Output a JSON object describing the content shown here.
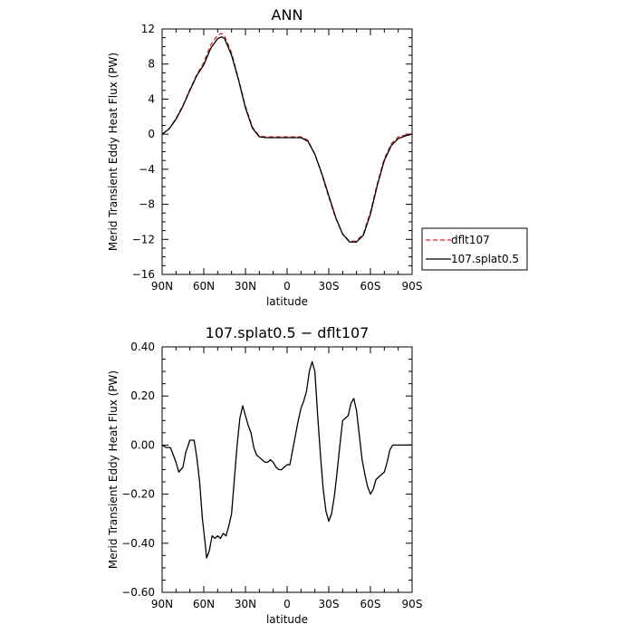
{
  "chart_data": [
    {
      "type": "line",
      "title": "ANN",
      "xlabel": "latitude",
      "ylabel": "Merid Transient Eddy Heat Flux (PW)",
      "xlim": [
        -90,
        90
      ],
      "ylim": [
        -16,
        12
      ],
      "x_ticks": [
        -90,
        -60,
        -30,
        0,
        30,
        60,
        90
      ],
      "x_tick_labels": [
        "90N",
        "60N",
        "30N",
        "0",
        "30S",
        "60S",
        "90S"
      ],
      "y_ticks": [
        12,
        8,
        4,
        0,
        -4,
        -8,
        -12,
        -16
      ],
      "y_tick_labels": [
        "12",
        "8",
        "4",
        "0",
        "−4",
        "−8",
        "−12",
        "−16"
      ],
      "legend_position": "right",
      "series": [
        {
          "name": "dflt107",
          "color": "#d62728",
          "dash": "dashed",
          "x": [
            -90,
            -85,
            -80,
            -75,
            -70,
            -65,
            -60,
            -55,
            -50,
            -47,
            -45,
            -40,
            -35,
            -30,
            -25,
            -20,
            -15,
            -10,
            -5,
            0,
            5,
            10,
            15,
            20,
            25,
            30,
            35,
            40,
            45,
            50,
            55,
            60,
            65,
            70,
            75,
            80,
            85,
            90
          ],
          "y": [
            0,
            0.6,
            1.8,
            3.3,
            5.1,
            6.8,
            8.2,
            10.2,
            11.3,
            11.5,
            11.2,
            9.3,
            6.3,
            3.2,
            0.8,
            -0.2,
            -0.3,
            -0.3,
            -0.3,
            -0.3,
            -0.3,
            -0.3,
            -0.7,
            -2.3,
            -4.6,
            -7.2,
            -9.6,
            -11.4,
            -12.2,
            -12.2,
            -11.3,
            -8.9,
            -5.6,
            -2.8,
            -1.1,
            -0.3,
            -0.1,
            0
          ]
        },
        {
          "name": "107.splat0.5",
          "color": "#000000",
          "dash": "solid",
          "x": [
            -90,
            -85,
            -80,
            -75,
            -70,
            -65,
            -60,
            -55,
            -50,
            -47,
            -45,
            -40,
            -35,
            -30,
            -25,
            -20,
            -15,
            -10,
            -5,
            0,
            5,
            10,
            15,
            20,
            25,
            30,
            35,
            40,
            45,
            50,
            55,
            60,
            65,
            70,
            75,
            80,
            85,
            90
          ],
          "y": [
            0,
            0.6,
            1.7,
            3.2,
            5.0,
            6.7,
            7.9,
            9.8,
            10.9,
            11.1,
            10.9,
            9.0,
            6.2,
            3.0,
            0.7,
            -0.3,
            -0.4,
            -0.4,
            -0.4,
            -0.4,
            -0.4,
            -0.4,
            -0.8,
            -2.3,
            -4.5,
            -7.0,
            -9.5,
            -11.4,
            -12.3,
            -12.3,
            -11.5,
            -9.1,
            -5.8,
            -3.0,
            -1.3,
            -0.5,
            -0.2,
            0
          ]
        }
      ]
    },
    {
      "type": "line",
      "title": "107.splat0.5 − dflt107",
      "xlabel": "latitude",
      "ylabel": "Merid Transient Eddy Heat Flux (PW)",
      "xlim": [
        -90,
        90
      ],
      "ylim": [
        -0.6,
        0.4
      ],
      "x_ticks": [
        -90,
        -60,
        -30,
        0,
        30,
        60,
        90
      ],
      "x_tick_labels": [
        "90N",
        "60N",
        "30N",
        "0",
        "30S",
        "60S",
        "90S"
      ],
      "y_ticks": [
        0.4,
        0.2,
        0,
        -0.2,
        -0.4,
        -0.6
      ],
      "y_tick_labels": [
        "0.40",
        "0.20",
        "0.00",
        "−0.20",
        "−0.40",
        "−0.60"
      ],
      "series": [
        {
          "color": "#000000",
          "dash": "solid",
          "x": [
            -90,
            -87,
            -84,
            -82,
            -80,
            -78,
            -75,
            -73,
            -70,
            -67,
            -65,
            -63,
            -61,
            -59,
            -58,
            -56,
            -54,
            -52,
            -50,
            -48,
            -46,
            -44,
            -42,
            -40,
            -38,
            -36,
            -34,
            -32,
            -30,
            -28,
            -26,
            -24,
            -22,
            -20,
            -18,
            -16,
            -14,
            -12,
            -10,
            -8,
            -6,
            -4,
            -2,
            0,
            2,
            4,
            6,
            8,
            10,
            12,
            14,
            16,
            18,
            20,
            22,
            24,
            26,
            28,
            30,
            32,
            34,
            36,
            38,
            40,
            42,
            44,
            46,
            48,
            50,
            52,
            54,
            56,
            58,
            60,
            62,
            64,
            66,
            68,
            70,
            72,
            74,
            76,
            78,
            80,
            82,
            84,
            86,
            88,
            90
          ],
          "y": [
            0,
            -0.01,
            -0.01,
            -0.04,
            -0.07,
            -0.11,
            -0.09,
            -0.03,
            0.02,
            0.02,
            -0.05,
            -0.15,
            -0.3,
            -0.4,
            -0.46,
            -0.43,
            -0.37,
            -0.38,
            -0.37,
            -0.38,
            -0.36,
            -0.37,
            -0.33,
            -0.28,
            -0.14,
            0.0,
            0.11,
            0.16,
            0.12,
            0.08,
            0.05,
            -0.01,
            -0.04,
            -0.05,
            -0.06,
            -0.07,
            -0.07,
            -0.06,
            -0.07,
            -0.09,
            -0.1,
            -0.1,
            -0.09,
            -0.08,
            -0.08,
            -0.02,
            0.04,
            0.1,
            0.15,
            0.18,
            0.22,
            0.3,
            0.34,
            0.3,
            0.12,
            -0.04,
            -0.18,
            -0.27,
            -0.31,
            -0.28,
            -0.21,
            -0.11,
            0.0,
            0.1,
            0.11,
            0.12,
            0.17,
            0.19,
            0.14,
            0.04,
            -0.06,
            -0.12,
            -0.17,
            -0.2,
            -0.18,
            -0.14,
            -0.13,
            -0.12,
            -0.11,
            -0.07,
            -0.02,
            0.0,
            0.0,
            0.0,
            0.0,
            0.0,
            0.0,
            0.0,
            0.0
          ]
        }
      ]
    }
  ]
}
